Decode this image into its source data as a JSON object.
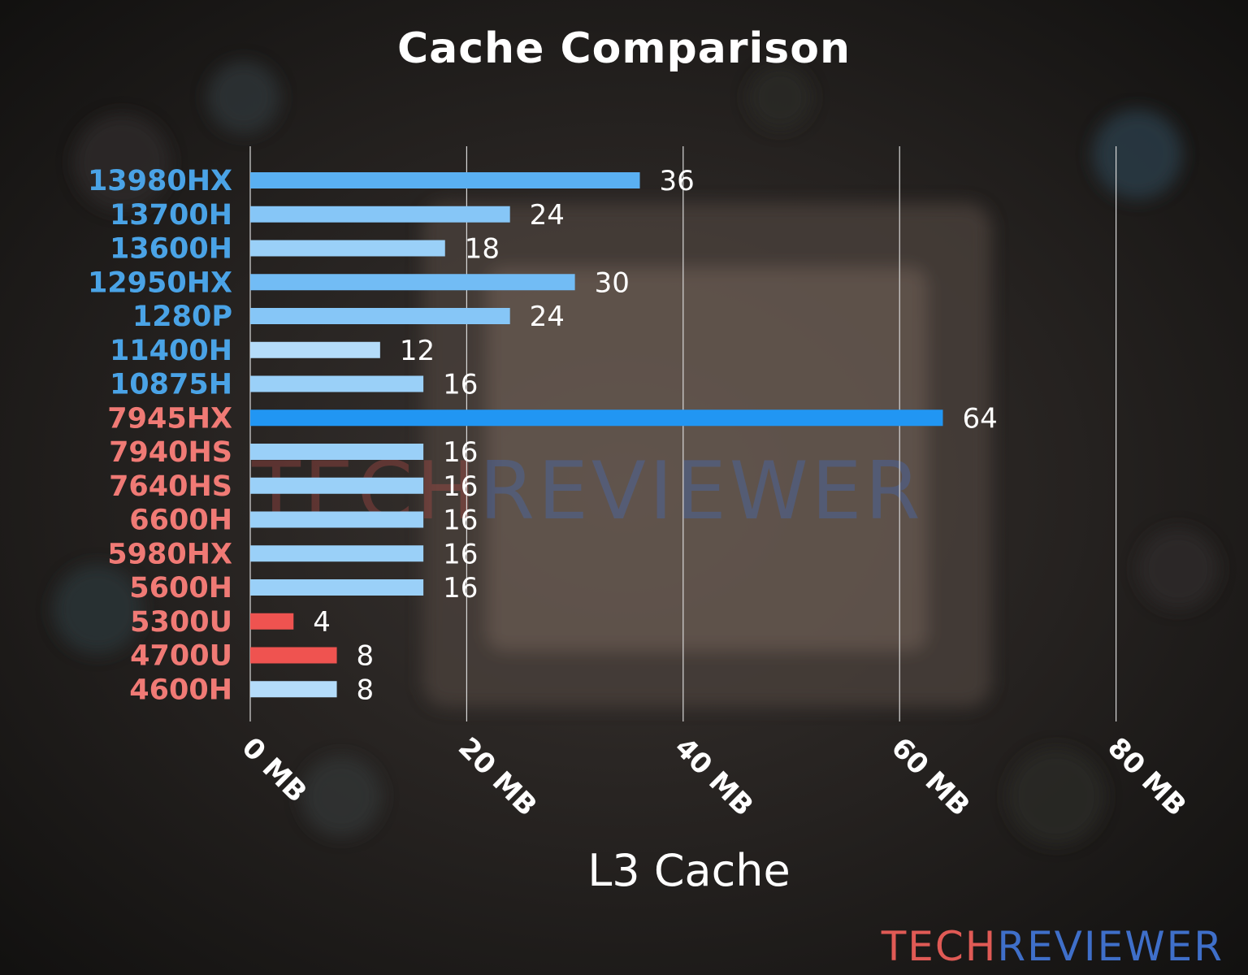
{
  "chart_data": {
    "type": "bar",
    "orientation": "horizontal",
    "title": "Cache Comparison",
    "xlabel": "L3 Cache",
    "ylabel": "",
    "xlim": [
      0,
      80
    ],
    "x_ticks": [
      0,
      20,
      40,
      60,
      80
    ],
    "x_tick_labels": [
      "0 MB",
      "20 MB",
      "40 MB",
      "60 MB",
      "80 MB"
    ],
    "grid": "vertical",
    "categories": [
      "13980HX",
      "13700H",
      "13600H",
      "12950HX",
      "1280P",
      "11400H",
      "10875H",
      "7945HX",
      "7940HS",
      "7640HS",
      "6600H",
      "5980HX",
      "5600H",
      "5300U",
      "4700U",
      "4600H"
    ],
    "values": [
      36,
      24,
      18,
      30,
      24,
      12,
      16,
      64,
      16,
      16,
      16,
      16,
      16,
      4,
      8,
      8
    ],
    "label_colors": [
      "#4aa3e6",
      "#4aa3e6",
      "#4aa3e6",
      "#4aa3e6",
      "#4aa3e6",
      "#4aa3e6",
      "#4aa3e6",
      "#f07a75",
      "#f07a75",
      "#f07a75",
      "#f07a75",
      "#f07a75",
      "#f07a75",
      "#f07a75",
      "#f07a75",
      "#f07a75"
    ],
    "bar_colors": [
      "#5ab0f2",
      "#86c6f7",
      "#9ad0f8",
      "#72bcf5",
      "#86c6f7",
      "#b4dcfa",
      "#9ad0f8",
      "#2196f3",
      "#9ad0f8",
      "#9ad0f8",
      "#9ad0f8",
      "#9ad0f8",
      "#9ad0f8",
      "#ef5350",
      "#ef5350",
      "#b4dcfa"
    ]
  },
  "brand": {
    "part1": "TECH",
    "part2": "REVIEWER",
    "color1": "#e05a55",
    "color2": "#3f6fc9"
  }
}
